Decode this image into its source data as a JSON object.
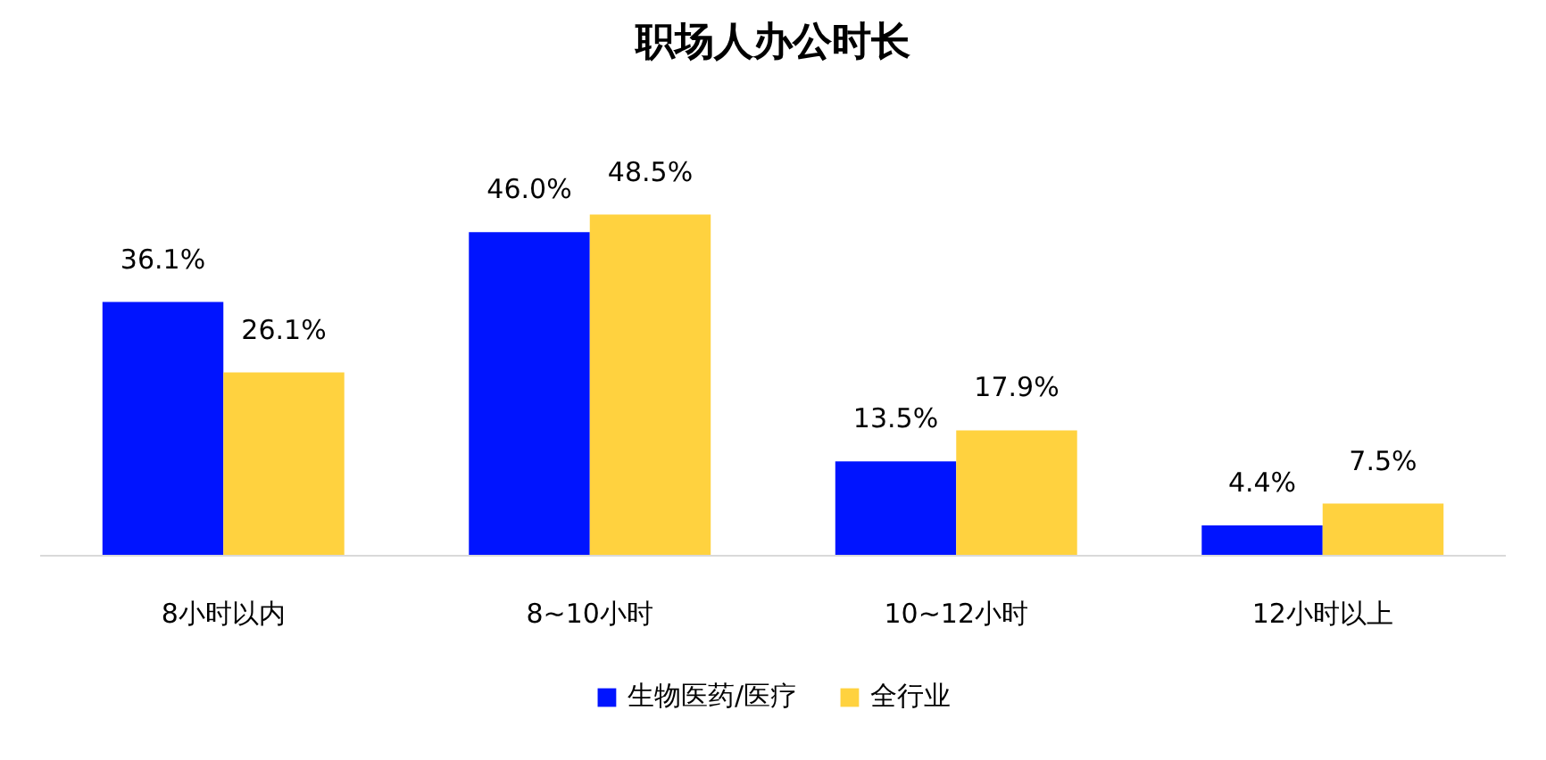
{
  "chart_data": {
    "type": "bar",
    "title": "职场人办公时长",
    "categories": [
      "8小时以内",
      "8~10小时",
      "10~12小时",
      "12小时以上"
    ],
    "series": [
      {
        "name": "生物医药/医疗",
        "color": "#0014ff",
        "values": [
          36.1,
          46.0,
          13.5,
          4.4
        ],
        "value_labels": [
          "36.1%",
          "46.0%",
          "13.5%",
          "4.4%"
        ]
      },
      {
        "name": "全行业",
        "color": "#ffd23f",
        "values": [
          26.1,
          48.5,
          17.9,
          7.5
        ],
        "value_labels": [
          "26.1%",
          "48.5%",
          "17.9%",
          "7.5%"
        ]
      }
    ],
    "legend": "bottom"
  }
}
